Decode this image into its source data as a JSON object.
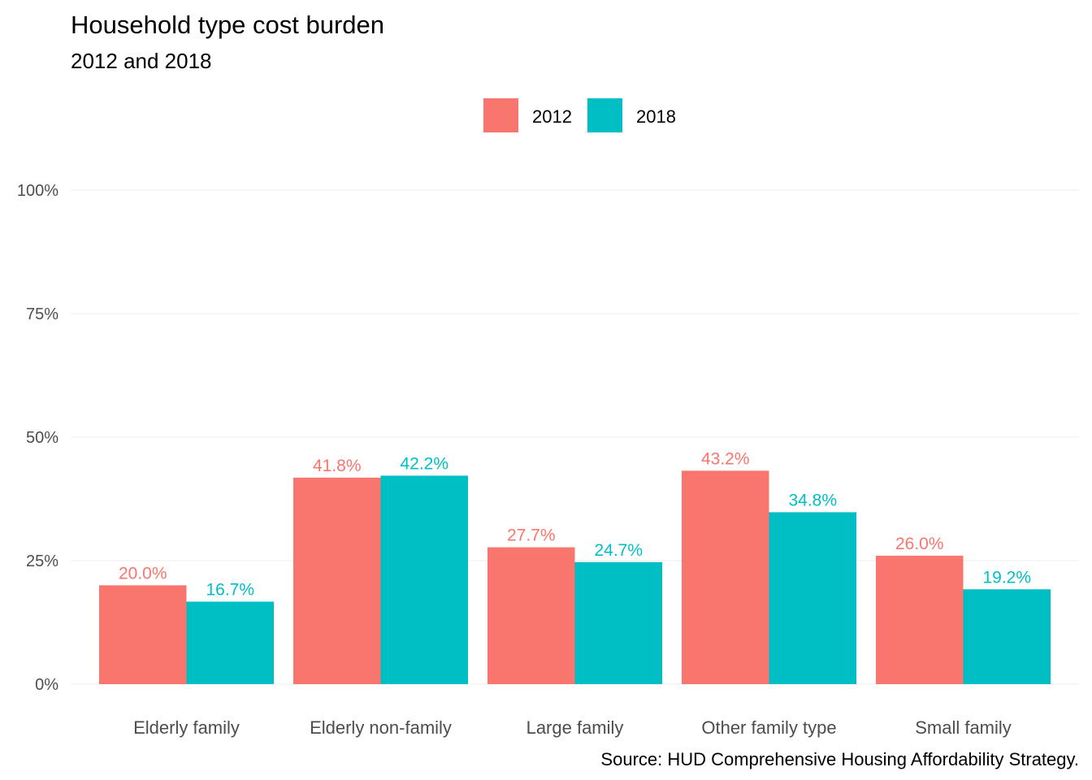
{
  "chart_data": {
    "type": "bar",
    "title": "Household type cost burden",
    "subtitle": "2012 and 2018",
    "caption": "Source: HUD Comprehensive Housing Affordability Strategy.",
    "categories": [
      "Elderly family",
      "Elderly non-family",
      "Large family",
      "Other family type",
      "Small family"
    ],
    "series": [
      {
        "name": "2012",
        "color": "#F8766D",
        "values": [
          20.0,
          41.8,
          27.7,
          43.2,
          26.0
        ],
        "labels": [
          "20.0%",
          "41.8%",
          "27.7%",
          "43.2%",
          "26.0%"
        ]
      },
      {
        "name": "2018",
        "color": "#00BFC4",
        "values": [
          16.7,
          42.2,
          24.7,
          34.8,
          19.2
        ],
        "labels": [
          "16.7%",
          "42.2%",
          "24.7%",
          "34.8%",
          "19.2%"
        ]
      }
    ],
    "ylim": [
      0,
      100
    ],
    "yticks": [
      0,
      25,
      50,
      75,
      100
    ],
    "ytick_labels": [
      "0%",
      "25%",
      "50%",
      "75%",
      "100%"
    ],
    "xlabel": "",
    "ylabel": "",
    "legend_position": "top",
    "grid": true
  }
}
